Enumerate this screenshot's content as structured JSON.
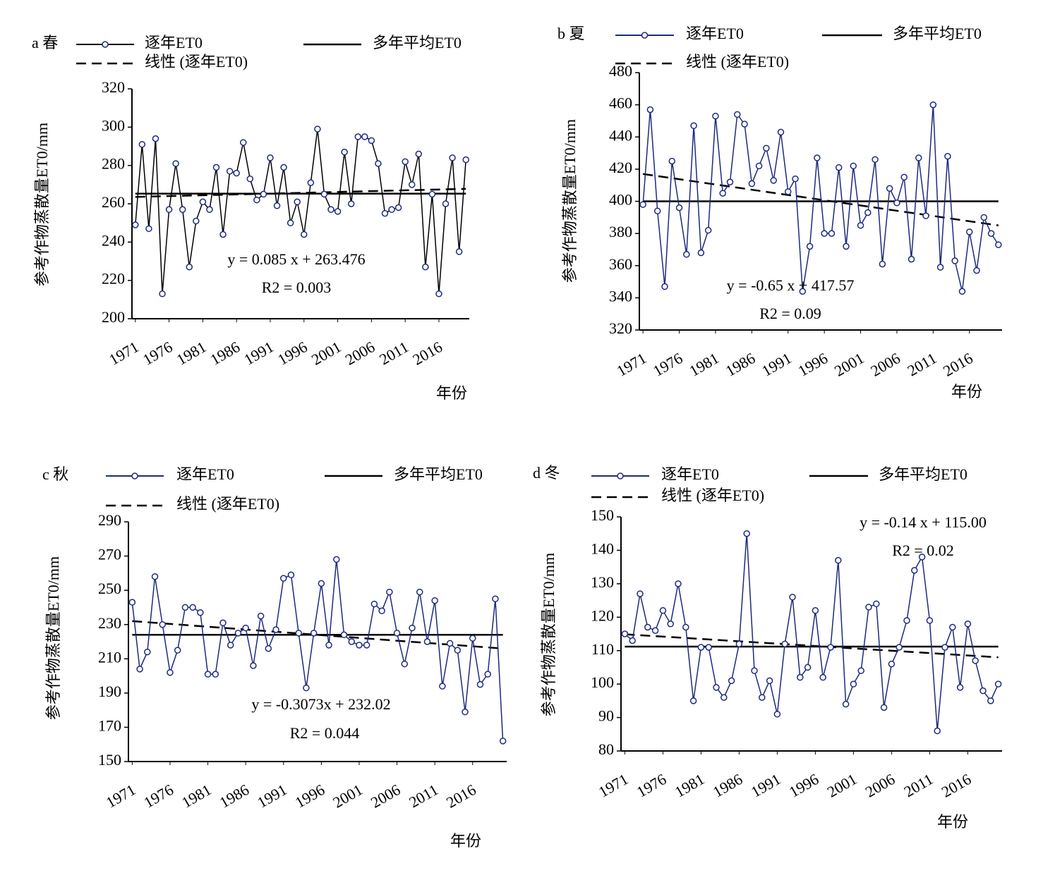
{
  "chart_data": [
    {
      "type": "line",
      "title": "a 春",
      "y_label": "参考作物蒸散量ET0/mm",
      "x_label": "年份",
      "annotations": [
        "y = 0.085 x + 263.476",
        "R2 = 0.003"
      ],
      "x": [
        1971,
        1972,
        1973,
        1974,
        1975,
        1976,
        1977,
        1978,
        1979,
        1980,
        1981,
        1982,
        1983,
        1984,
        1985,
        1986,
        1987,
        1988,
        1989,
        1990,
        1991,
        1992,
        1993,
        1994,
        1995,
        1996,
        1997,
        1998,
        1999,
        2000,
        2001,
        2002,
        2003,
        2004,
        2005,
        2006,
        2007,
        2008,
        2009,
        2010,
        2011,
        2012,
        2013,
        2014,
        2015,
        2016,
        2017,
        2018,
        2019,
        2020
      ],
      "xlim": [
        1970.5,
        2020.5
      ],
      "xticks": [
        1971,
        1976,
        1981,
        1986,
        1991,
        1996,
        2001,
        2006,
        2011,
        2016
      ],
      "ylim": [
        200,
        320
      ],
      "yticks": [
        200,
        220,
        240,
        260,
        280,
        300,
        320
      ],
      "series": [
        {
          "name": "逐年ET0",
          "color": "#000000",
          "marker_color": "#1c2a80",
          "values": [
            249,
            291,
            247,
            294,
            213,
            257,
            281,
            257,
            227,
            251,
            261,
            257,
            279,
            244,
            277,
            276,
            292,
            273,
            262,
            265,
            284,
            259,
            279,
            250,
            261,
            244,
            271,
            299,
            265,
            257,
            256,
            287,
            260,
            295,
            295,
            293,
            281,
            255,
            257,
            258,
            282,
            270,
            286,
            227,
            265,
            213,
            260,
            284,
            235,
            283
          ]
        },
        {
          "name": "多年平均ET0",
          "color": "#000000",
          "x": [
            1971,
            2020
          ],
          "values": [
            265.3,
            265.3
          ]
        },
        {
          "name": "线性 (逐年ET0)",
          "color": "#000000",
          "line_style": "dashed",
          "x": [
            1971,
            2020
          ],
          "values": [
            263.6,
            267.8
          ]
        }
      ]
    },
    {
      "type": "line",
      "title": "b 夏",
      "y_label": "参考作物蒸散量ET0/mm",
      "x_label": "年份",
      "annotations": [
        "y = -0.65 x + 417.57",
        "R2 = 0.09"
      ],
      "x": [
        1971,
        1972,
        1973,
        1974,
        1975,
        1976,
        1977,
        1978,
        1979,
        1980,
        1981,
        1982,
        1983,
        1984,
        1985,
        1986,
        1987,
        1988,
        1989,
        1990,
        1991,
        1992,
        1993,
        1994,
        1995,
        1996,
        1997,
        1998,
        1999,
        2000,
        2001,
        2002,
        2003,
        2004,
        2005,
        2006,
        2007,
        2008,
        2009,
        2010,
        2011,
        2012,
        2013,
        2014,
        2015,
        2016,
        2017,
        2018,
        2019,
        2020
      ],
      "xlim": [
        1970.5,
        2020.5
      ],
      "xticks": [
        1971,
        1976,
        1981,
        1986,
        1991,
        1996,
        2001,
        2006,
        2011,
        2016
      ],
      "ylim": [
        320,
        480
      ],
      "yticks": [
        320,
        340,
        360,
        380,
        400,
        420,
        440,
        460,
        480
      ],
      "series": [
        {
          "name": "逐年ET0",
          "color": "#1c2a80",
          "marker_color": "#1c2a80",
          "values": [
            398,
            457,
            394,
            347,
            425,
            396,
            367,
            447,
            368,
            382,
            453,
            405,
            412,
            454,
            448,
            411,
            422,
            433,
            413,
            443,
            406,
            414,
            344,
            372,
            427,
            380,
            380,
            421,
            372,
            422,
            385,
            393,
            426,
            361,
            408,
            399,
            415,
            364,
            427,
            391,
            460,
            359,
            428,
            363,
            344,
            381,
            357,
            390,
            380,
            373
          ]
        },
        {
          "name": "多年平均ET0",
          "color": "#000000",
          "x": [
            1971,
            2020
          ],
          "values": [
            400,
            400
          ]
        },
        {
          "name": "线性 (逐年ET0)",
          "color": "#000000",
          "line_style": "dashed",
          "x": [
            1971,
            2020
          ],
          "values": [
            417,
            385
          ]
        }
      ]
    },
    {
      "type": "line",
      "title": "c 秋",
      "y_label": "参考作物蒸散量ET0/mm",
      "x_label": "年份",
      "annotations": [
        "y = -0.3073x + 232.02",
        "R2 = 0.044"
      ],
      "x": [
        1971,
        1972,
        1973,
        1974,
        1975,
        1976,
        1977,
        1978,
        1979,
        1980,
        1981,
        1982,
        1983,
        1984,
        1985,
        1986,
        1987,
        1988,
        1989,
        1990,
        1991,
        1992,
        1993,
        1994,
        1995,
        1996,
        1997,
        1998,
        1999,
        2000,
        2001,
        2002,
        2003,
        2004,
        2005,
        2006,
        2007,
        2008,
        2009,
        2010,
        2011,
        2012,
        2013,
        2014,
        2015,
        2016,
        2017,
        2018,
        2019,
        2020
      ],
      "xlim": [
        1970.5,
        2020.5
      ],
      "xticks": [
        1971,
        1976,
        1981,
        1986,
        1991,
        1996,
        2001,
        2006,
        2011,
        2016
      ],
      "ylim": [
        150,
        290
      ],
      "yticks": [
        150,
        170,
        190,
        210,
        230,
        250,
        270,
        290
      ],
      "series": [
        {
          "name": "逐年ET0",
          "color": "#1c2a80",
          "marker_color": "#1c2a80",
          "values": [
            243,
            204,
            214,
            258,
            230,
            202,
            215,
            240,
            240,
            237,
            201,
            201,
            231,
            218,
            225,
            228,
            206,
            235,
            216,
            227,
            257,
            259,
            225,
            193,
            225,
            254,
            218,
            268,
            224,
            220,
            218,
            218,
            242,
            238,
            249,
            225,
            207,
            228,
            249,
            220,
            244,
            194,
            219,
            215,
            179,
            222,
            195,
            201,
            245,
            162
          ]
        },
        {
          "name": "多年平均ET0",
          "color": "#000000",
          "x": [
            1971,
            2020
          ],
          "values": [
            224,
            224
          ]
        },
        {
          "name": "线性 (逐年ET0)",
          "color": "#000000",
          "line_style": "dashed",
          "x": [
            1971,
            2020
          ],
          "values": [
            232,
            216
          ]
        }
      ]
    },
    {
      "type": "line",
      "title": "d 冬",
      "y_label": "参考作物蒸散量ET0/mm",
      "x_label": "年份",
      "annotations": [
        "y = -0.14 x + 115.00",
        "R2 = 0.02"
      ],
      "x": [
        1971,
        1972,
        1973,
        1974,
        1975,
        1976,
        1977,
        1978,
        1979,
        1980,
        1981,
        1982,
        1983,
        1984,
        1985,
        1986,
        1987,
        1988,
        1989,
        1990,
        1991,
        1992,
        1993,
        1994,
        1995,
        1996,
        1997,
        1998,
        1999,
        2000,
        2001,
        2002,
        2003,
        2004,
        2005,
        2006,
        2007,
        2008,
        2009,
        2010,
        2011,
        2012,
        2013,
        2014,
        2015,
        2016,
        2017,
        2018,
        2019,
        2020
      ],
      "xlim": [
        1970.5,
        2020.5
      ],
      "xticks": [
        1971,
        1976,
        1981,
        1986,
        1991,
        1996,
        2001,
        2006,
        2011,
        2016
      ],
      "ylim": [
        80,
        150
      ],
      "yticks": [
        80,
        90,
        100,
        110,
        120,
        130,
        140,
        150
      ],
      "series": [
        {
          "name": "逐年ET0",
          "color": "#1c2a80",
          "marker_color": "#1c2a80",
          "values": [
            115,
            113,
            127,
            117,
            116,
            122,
            118,
            130,
            117,
            95,
            111,
            111,
            99,
            96,
            101,
            112,
            145,
            104,
            96,
            101,
            91,
            112,
            126,
            102,
            105,
            122,
            102,
            111,
            137,
            94,
            100,
            104,
            123,
            124,
            93,
            106,
            111,
            119,
            134,
            138,
            119,
            86,
            111,
            117,
            99,
            118,
            107,
            98,
            95,
            100
          ]
        },
        {
          "name": "多年平均ET0",
          "color": "#000000",
          "x": [
            1971,
            2020
          ],
          "values": [
            111.2,
            111.2
          ]
        },
        {
          "name": "线性 (逐年ET0)",
          "color": "#000000",
          "line_style": "dashed",
          "x": [
            1971,
            2020
          ],
          "values": [
            114.9,
            108
          ]
        }
      ]
    }
  ]
}
